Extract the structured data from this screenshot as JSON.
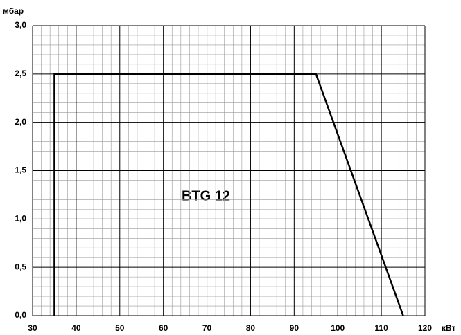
{
  "chart_data": {
    "type": "line",
    "y_label": "мбар",
    "x_label": "кВт",
    "annotation": "BTG 12",
    "x": [
      35,
      35,
      95,
      115
    ],
    "series": [
      {
        "color": "#000000",
        "values": [
          0,
          2.5,
          2.5,
          0
        ]
      }
    ],
    "xlim": [
      30,
      120
    ],
    "xticks": [
      30,
      40,
      50,
      60,
      70,
      80,
      90,
      100,
      110,
      120
    ],
    "ylim": [
      0,
      3
    ],
    "yticks": [
      {
        "value": 0,
        "label": "0,0"
      },
      {
        "value": 0.5,
        "label": "0,5"
      },
      {
        "value": 1,
        "label": "1,0"
      },
      {
        "value": 1.5,
        "label": "1,5"
      },
      {
        "value": 2,
        "label": "2,0"
      },
      {
        "value": 2.5,
        "label": "2,5"
      },
      {
        "value": 3,
        "label": "3,0"
      }
    ],
    "grid": true
  }
}
